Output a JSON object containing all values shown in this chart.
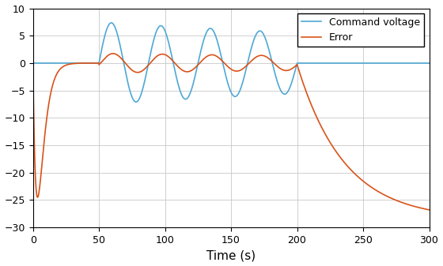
{
  "xlim": [
    0,
    300
  ],
  "ylim": [
    -30,
    10
  ],
  "xlabel": "Time (s)",
  "xticks": [
    0,
    50,
    100,
    150,
    200,
    250,
    300
  ],
  "yticks": [
    -30,
    -25,
    -20,
    -15,
    -10,
    -5,
    0,
    5,
    10
  ],
  "legend": [
    "Command voltage",
    "Error"
  ],
  "cmd_color": "#4FA8D5",
  "error_color": "#D95319",
  "background_color": "#FFFFFF",
  "figsize": [
    5.6,
    3.37
  ],
  "dpi": 100,
  "cmd_period": 37.5,
  "cmd_amp": 7.5,
  "cmd_start": 50,
  "cmd_end": 200,
  "error_drop": -24.5,
  "error_drop_tau": 3.5,
  "error_rise_tau": 15,
  "error_osc_amp": 1.8,
  "error_final": -28.5
}
